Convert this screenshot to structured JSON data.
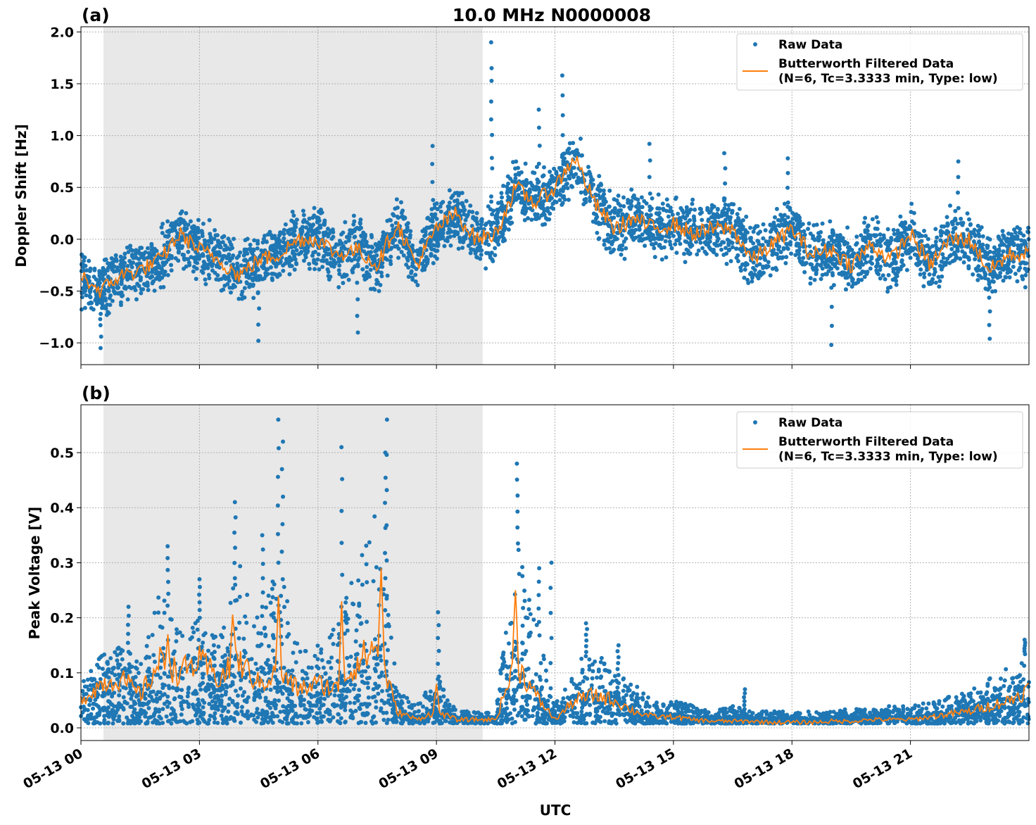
{
  "title": "10.0 MHz N0000008",
  "colors": {
    "raw": "#1f77b4",
    "filtered": "#ff7f0e",
    "shade": "#e8e8e8"
  },
  "chart_data": [
    {
      "type": "scatter",
      "panel_label": "(a)",
      "title": "10.0 MHz N0000008",
      "ylabel": "Doppler Shift [Hz]",
      "xlabel": "",
      "xlim_hours": [
        0,
        24
      ],
      "ylim": [
        -1.21,
        2.05
      ],
      "yticks": [
        -1.0,
        -0.5,
        0.0,
        0.5,
        1.0,
        1.5,
        2.0
      ],
      "ytick_labels": [
        "−1.0",
        "−0.5",
        "0.0",
        "0.5",
        "1.0",
        "1.5",
        "2.0"
      ],
      "grid": true,
      "legend_placement": "top-right",
      "shaded_interval_hours": [
        0.57,
        10.17
      ],
      "legend": [
        "Raw Data",
        "Butterworth Filtered Data",
        "(N=6, Tc=3.3333 min, Type: low)"
      ],
      "hours": [
        0,
        0.5,
        1,
        1.5,
        2,
        2.5,
        3,
        3.5,
        4,
        4.5,
        5,
        5.5,
        6,
        6.5,
        7,
        7.5,
        8,
        8.5,
        9,
        9.5,
        10,
        10.5,
        11,
        11.5,
        12,
        12.5,
        13,
        13.5,
        14,
        14.5,
        15,
        15.5,
        16,
        16.5,
        17,
        17.5,
        18,
        18.5,
        19,
        19.5,
        20,
        20.5,
        21,
        21.5,
        22,
        22.5,
        23,
        23.5,
        24
      ],
      "filtered": [
        -0.35,
        -0.5,
        -0.35,
        -0.3,
        -0.2,
        0.05,
        -0.1,
        -0.2,
        -0.35,
        -0.2,
        -0.15,
        0,
        0,
        -0.15,
        -0.1,
        -0.25,
        0.15,
        -0.25,
        0.1,
        0.25,
        0.0,
        0.05,
        0.5,
        0.35,
        0.5,
        0.8,
        0.35,
        0.1,
        0.2,
        0.1,
        0.15,
        0.05,
        0.1,
        0.1,
        -0.2,
        -0.05,
        0.1,
        -0.15,
        -0.1,
        -0.25,
        -0.05,
        -0.2,
        0.05,
        -0.25,
        0.0,
        0.0,
        -0.3,
        -0.15,
        -0.15
      ],
      "raw_spread": 0.35,
      "raw_outliers": [
        [
          10.4,
          1.9
        ],
        [
          10.4,
          1.65
        ],
        [
          12.2,
          1.58
        ],
        [
          11.6,
          1.25
        ],
        [
          8.9,
          0.9
        ],
        [
          19.0,
          -1.02
        ],
        [
          0.5,
          -1.05
        ],
        [
          4.5,
          -0.98
        ],
        [
          17.9,
          0.78
        ],
        [
          23.0,
          -0.96
        ],
        [
          16.3,
          0.83
        ],
        [
          22.2,
          0.75
        ],
        [
          14.4,
          0.92
        ],
        [
          7.0,
          -0.9
        ]
      ]
    },
    {
      "type": "scatter",
      "panel_label": "(b)",
      "ylabel": "Peak Voltage [V]",
      "xlabel": "UTC",
      "xlim_hours": [
        0,
        24
      ],
      "ylim": [
        -0.023,
        0.587
      ],
      "yticks": [
        0.0,
        0.1,
        0.2,
        0.3,
        0.4,
        0.5
      ],
      "ytick_labels": [
        "0.0",
        "0.1",
        "0.2",
        "0.3",
        "0.4",
        "0.5"
      ],
      "xticks_hours": [
        0,
        3,
        6,
        9,
        12,
        15,
        18,
        21
      ],
      "xtick_labels": [
        "05-13 00",
        "05-13 03",
        "05-13 06",
        "05-13 09",
        "05-13 12",
        "05-13 15",
        "05-13 18",
        "05-13 21"
      ],
      "grid": true,
      "legend_placement": "top-right",
      "shaded_interval_hours": [
        0.57,
        10.17
      ],
      "legend": [
        "Raw Data",
        "Butterworth Filtered Data",
        "(N=6, Tc=3.3333 min, Type: low)"
      ],
      "hours": [
        0,
        0.5,
        1,
        1.5,
        2,
        2.5,
        3,
        3.5,
        4,
        4.5,
        5,
        5.5,
        6,
        6.5,
        7,
        7.5,
        8,
        8.5,
        9,
        9.5,
        10,
        10.5,
        11,
        11.5,
        12,
        12.5,
        13,
        13.5,
        14,
        14.5,
        15,
        15.5,
        16,
        16.5,
        17,
        17.5,
        18,
        18.5,
        19,
        19.5,
        20,
        20.5,
        21,
        21.5,
        22,
        22.5,
        23,
        23.5,
        24
      ],
      "filtered": [
        0.05,
        0.08,
        0.09,
        0.06,
        0.12,
        0.1,
        0.12,
        0.09,
        0.12,
        0.08,
        0.1,
        0.07,
        0.08,
        0.07,
        0.12,
        0.15,
        0.03,
        0.015,
        0.03,
        0.015,
        0.015,
        0.015,
        0.12,
        0.06,
        0.015,
        0.05,
        0.06,
        0.05,
        0.03,
        0.02,
        0.02,
        0.015,
        0.012,
        0.012,
        0.012,
        0.01,
        0.01,
        0.01,
        0.012,
        0.012,
        0.015,
        0.015,
        0.015,
        0.02,
        0.025,
        0.03,
        0.04,
        0.05,
        0.07
      ],
      "filtered_peaks": [
        [
          3.85,
          0.22
        ],
        [
          5.0,
          0.24
        ],
        [
          6.6,
          0.23
        ],
        [
          7.6,
          0.29
        ],
        [
          11.0,
          0.25
        ],
        [
          9.0,
          0.08
        ],
        [
          2.2,
          0.17
        ]
      ],
      "raw_high": [
        0.1,
        0.13,
        0.15,
        0.12,
        0.25,
        0.18,
        0.2,
        0.16,
        0.3,
        0.2,
        0.3,
        0.15,
        0.15,
        0.2,
        0.3,
        0.4,
        0.08,
        0.04,
        0.1,
        0.03,
        0.03,
        0.03,
        0.35,
        0.2,
        0.04,
        0.12,
        0.15,
        0.1,
        0.08,
        0.05,
        0.05,
        0.04,
        0.03,
        0.04,
        0.03,
        0.03,
        0.03,
        0.03,
        0.03,
        0.035,
        0.035,
        0.04,
        0.04,
        0.05,
        0.06,
        0.07,
        0.09,
        0.11,
        0.14
      ],
      "raw_low": 0.008,
      "raw_outliers": [
        [
          5.0,
          0.56
        ],
        [
          7.75,
          0.56
        ],
        [
          6.6,
          0.51
        ],
        [
          11.05,
          0.48
        ],
        [
          3.9,
          0.41
        ],
        [
          4.6,
          0.35
        ],
        [
          9.05,
          0.21
        ],
        [
          11.9,
          0.3
        ],
        [
          11.6,
          0.29
        ],
        [
          1.2,
          0.22
        ],
        [
          2.2,
          0.33
        ],
        [
          3.0,
          0.27
        ],
        [
          12.8,
          0.19
        ],
        [
          13.6,
          0.15
        ],
        [
          16.8,
          0.07
        ],
        [
          23.9,
          0.16
        ],
        [
          5.1,
          0.52
        ],
        [
          7.7,
          0.5
        ]
      ]
    }
  ]
}
